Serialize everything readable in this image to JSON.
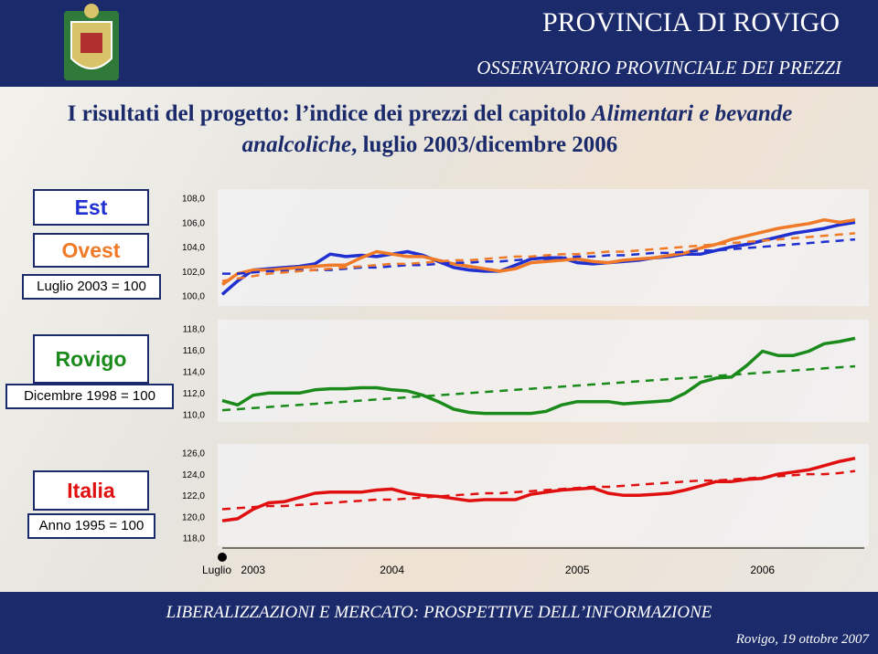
{
  "header": {
    "title": "PROVINCIA DI ROVIGO",
    "subtitle": "OSSERVATORIO PROVINCIALE DEI PREZZI"
  },
  "title": [
    "I risultati del progetto: l’indice dei prezzi del capitolo ",
    "Alimentari e bevande analcoliche",
    ", luglio 2003/dicembre 2006"
  ],
  "footer": {
    "title": "LIBERALIZZAZIONI E MERCATO: PROSPETTIVE DELL’INFORMAZIONE",
    "place_date": "Rovigo, 19 ottobre 2007"
  },
  "chart_data": [
    {
      "type": "line",
      "base": "Luglio 2003 = 100",
      "ylim": [
        100,
        108
      ],
      "yticks": [
        {
          "value": 100,
          "label": "100,0"
        },
        {
          "value": 102,
          "label": "102,0"
        },
        {
          "value": 104,
          "label": "104,0"
        },
        {
          "value": 106,
          "label": "106,0"
        },
        {
          "value": 108,
          "label": "108,0"
        }
      ],
      "series": [
        {
          "name": "Est",
          "color": "#1f2fd0",
          "values": [
            100.2,
            101.3,
            102.2,
            102.3,
            102.4,
            102.5,
            102.7,
            103.5,
            103.3,
            103.4,
            103.3,
            103.5,
            103.7,
            103.4,
            102.9,
            102.4,
            102.2,
            102.1,
            102.1,
            102.6,
            103.1,
            103.2,
            103.2,
            102.8,
            102.7,
            102.8,
            102.9,
            103.0,
            103.2,
            103.3,
            103.5,
            103.5,
            103.8,
            104.1,
            104.3,
            104.6,
            104.9,
            105.2,
            105.4,
            105.6,
            105.9,
            106.1
          ]
        },
        {
          "name": "Ovest",
          "color": "#f07a28",
          "values": [
            101.0,
            101.9,
            102.2,
            102.2,
            102.3,
            102.4,
            102.5,
            102.6,
            102.6,
            103.2,
            103.7,
            103.5,
            103.3,
            103.3,
            103.0,
            102.7,
            102.5,
            102.3,
            102.1,
            102.3,
            102.8,
            102.9,
            103.0,
            103.1,
            102.9,
            102.8,
            103.0,
            103.1,
            103.2,
            103.4,
            103.6,
            104.0,
            104.3,
            104.7,
            105.0,
            105.3,
            105.6,
            105.8,
            106.0,
            106.3,
            106.1,
            106.3
          ]
        },
        {
          "color": "#1f2fd0",
          "dashed": true,
          "values": [
            101.9,
            101.9,
            102.0,
            102.1,
            102.1,
            102.2,
            102.2,
            102.2,
            102.3,
            102.4,
            102.4,
            102.5,
            102.6,
            102.6,
            102.7,
            102.8,
            102.8,
            102.9,
            102.9,
            103.0,
            103.1,
            103.1,
            103.2,
            103.3,
            103.3,
            103.4,
            103.4,
            103.5,
            103.6,
            103.6,
            103.7,
            103.8,
            103.8,
            103.9,
            104.0,
            104.1,
            104.2,
            104.3,
            104.4,
            104.5,
            104.6,
            104.7
          ]
        },
        {
          "color": "#f07a28",
          "dashed": true,
          "values": [
            101.3,
            101.5,
            101.7,
            101.9,
            102.0,
            102.1,
            102.2,
            102.3,
            102.4,
            102.5,
            102.6,
            102.7,
            102.7,
            102.8,
            102.9,
            103.0,
            103.0,
            103.1,
            103.2,
            103.3,
            103.3,
            103.4,
            103.5,
            103.5,
            103.6,
            103.7,
            103.7,
            103.8,
            103.9,
            104.0,
            104.1,
            104.2,
            104.3,
            104.4,
            104.5,
            104.6,
            104.7,
            104.8,
            104.9,
            105.0,
            105.1,
            105.2
          ]
        }
      ]
    },
    {
      "type": "line",
      "base": "Dicembre 1998 = 100",
      "ylim": [
        110,
        118
      ],
      "yticks": [
        {
          "value": 110,
          "label": "110,0"
        },
        {
          "value": 112,
          "label": "112,0"
        },
        {
          "value": 114,
          "label": "114,0"
        },
        {
          "value": 116,
          "label": "116,0"
        },
        {
          "value": 118,
          "label": "118,0"
        }
      ],
      "series": [
        {
          "name": "Rovigo",
          "color": "#1a8a1a",
          "values": [
            111.4,
            111.0,
            111.9,
            112.1,
            112.1,
            112.1,
            112.4,
            112.5,
            112.5,
            112.6,
            112.6,
            112.4,
            112.3,
            111.9,
            111.3,
            110.6,
            110.3,
            110.2,
            110.2,
            110.2,
            110.2,
            110.4,
            111.0,
            111.3,
            111.3,
            111.3,
            111.1,
            111.2,
            111.3,
            111.4,
            112.1,
            113.1,
            113.5,
            113.6,
            114.7,
            116.0,
            115.6,
            115.6,
            116.0,
            116.7,
            116.9,
            117.2
          ]
        },
        {
          "color": "#1a8a1a",
          "dashed": true,
          "values": [
            110.5,
            110.6,
            110.7,
            110.8,
            110.9,
            111.0,
            111.1,
            111.2,
            111.3,
            111.4,
            111.5,
            111.6,
            111.7,
            111.8,
            111.9,
            112.0,
            112.1,
            112.2,
            112.3,
            112.4,
            112.5,
            112.6,
            112.7,
            112.8,
            112.9,
            113.0,
            113.1,
            113.2,
            113.3,
            113.4,
            113.5,
            113.6,
            113.7,
            113.8,
            113.9,
            114.0,
            114.1,
            114.2,
            114.3,
            114.4,
            114.5,
            114.6
          ]
        }
      ]
    },
    {
      "type": "line",
      "base": "Anno 1995 = 100",
      "ylim": [
        118,
        126
      ],
      "yticks": [
        {
          "value": 118,
          "label": "118,0"
        },
        {
          "value": 120,
          "label": "120,0"
        },
        {
          "value": 122,
          "label": "122,0"
        },
        {
          "value": 124,
          "label": "124,0"
        },
        {
          "value": 126,
          "label": "126,0"
        }
      ],
      "categories": [
        "Luglio",
        null,
        "2003",
        null,
        null,
        null,
        null,
        null,
        null,
        null,
        null,
        "2004",
        null,
        null,
        null,
        null,
        null,
        null,
        null,
        null,
        null,
        null,
        null,
        "2005",
        null,
        null,
        null,
        null,
        null,
        null,
        null,
        null,
        null,
        null,
        null,
        "2006",
        null,
        null,
        null,
        null,
        null,
        null
      ],
      "series": [
        {
          "name": "Italia",
          "color": "#e01010",
          "values": [
            119.7,
            119.9,
            120.8,
            121.4,
            121.5,
            121.9,
            122.3,
            122.4,
            122.4,
            122.4,
            122.6,
            122.7,
            122.3,
            122.1,
            122.0,
            121.8,
            121.6,
            121.7,
            121.7,
            121.7,
            122.2,
            122.4,
            122.6,
            122.7,
            122.8,
            122.3,
            122.1,
            122.1,
            122.2,
            122.3,
            122.6,
            123.0,
            123.4,
            123.4,
            123.6,
            123.7,
            124.1,
            124.3,
            124.5,
            124.9,
            125.3,
            125.6
          ]
        },
        {
          "color": "#e01010",
          "dashed": true,
          "values": [
            120.8,
            120.9,
            121.0,
            121.1,
            121.1,
            121.2,
            121.3,
            121.4,
            121.5,
            121.6,
            121.7,
            121.7,
            121.8,
            121.9,
            122.0,
            122.1,
            122.2,
            122.3,
            122.3,
            122.4,
            122.5,
            122.6,
            122.7,
            122.8,
            122.9,
            122.9,
            123.0,
            123.1,
            123.2,
            123.3,
            123.4,
            123.5,
            123.5,
            123.6,
            123.7,
            123.8,
            123.9,
            124.0,
            124.1,
            124.1,
            124.2,
            124.4
          ]
        }
      ]
    }
  ]
}
